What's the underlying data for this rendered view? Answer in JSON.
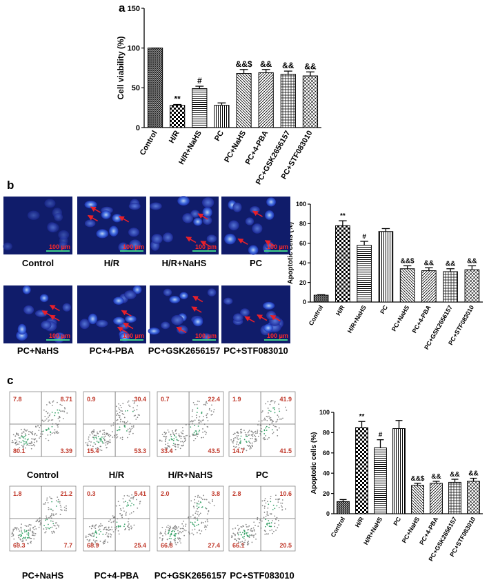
{
  "panels": [
    "a",
    "b",
    "c"
  ],
  "chart_data": [
    {
      "type": "bar",
      "y_label": "Cell viability (%)",
      "categories": [
        "Control",
        "H/R",
        "H/R+NaHS",
        "PC",
        "PC+NaHS",
        "PC+4-PBA",
        "PC+GSK2656157",
        "PC+STF083010"
      ],
      "values": [
        100,
        28,
        49,
        28,
        68,
        69,
        67,
        65
      ],
      "errors": [
        0,
        1,
        3,
        3,
        5,
        4,
        4,
        5
      ],
      "annotations": [
        null,
        "**",
        "#",
        null,
        "&&$",
        "&&",
        "&&",
        "&&"
      ],
      "patterns": [
        "crosshatch",
        "checker",
        "hlines",
        "vlines",
        "dots",
        "diag",
        "grid",
        "diagcross"
      ],
      "ylim": [
        0,
        150
      ],
      "yticks": [
        0,
        50,
        100,
        150
      ]
    },
    {
      "type": "bar",
      "y_label": "Apoptotic cells (%)",
      "categories": [
        "Control",
        "H/R",
        "H/R+NaHS",
        "PC",
        "PC+NaHS",
        "PC+4-PBA",
        "PC+GSK2656157",
        "PC+STF083010"
      ],
      "values": [
        7,
        78,
        58,
        72,
        34,
        32,
        31,
        33
      ],
      "errors": [
        0.5,
        5,
        4,
        3,
        3,
        3,
        3,
        4
      ],
      "annotations": [
        null,
        "**",
        "#",
        null,
        "&&$",
        "&&",
        "&&",
        "&&"
      ],
      "patterns": [
        "crosshatch",
        "checker",
        "hlines",
        "vlines",
        "dots",
        "diag",
        "grid",
        "diagcross"
      ],
      "ylim": [
        0,
        100
      ],
      "yticks": [
        0,
        20,
        40,
        60,
        80,
        100
      ]
    },
    {
      "type": "bar",
      "y_label": "Apoptotic cells (%)",
      "categories": [
        "Control",
        "H/R",
        "H/R+NaHS",
        "PC",
        "PC+NaHS",
        "PC+4-PBA",
        "PC+GSK2656157",
        "PC+STF083010"
      ],
      "values": [
        12,
        85,
        65,
        84,
        28,
        30,
        31,
        32
      ],
      "errors": [
        2,
        6,
        8,
        8,
        2,
        2,
        3,
        3
      ],
      "annotations": [
        null,
        "**",
        "#",
        null,
        "&&$",
        "&&",
        "&&",
        "&&"
      ],
      "patterns": [
        "crosshatch",
        "checker",
        "hlines",
        "vlines",
        "dots",
        "diag",
        "grid",
        "diagcross"
      ],
      "ylim": [
        0,
        100
      ],
      "yticks": [
        0,
        20,
        40,
        60,
        80,
        100
      ]
    }
  ],
  "micrographs": {
    "captions": [
      "Control",
      "H/R",
      "H/R+NaHS",
      "PC",
      "PC+NaHS",
      "PC+4-PBA",
      "PC+GSK2656157",
      "PC+STF083010"
    ],
    "scale_bar": "100 μm"
  },
  "flow": {
    "captions": [
      "Control",
      "H/R",
      "H/R+NaHS",
      "PC",
      "PC+NaHS",
      "PC+4-PBA",
      "PC+GSK2656157",
      "PC+STF083010"
    ],
    "quadrants": [
      [
        "7.8",
        "8.71",
        "80.1",
        "3.39"
      ],
      [
        "0.9",
        "30.4",
        "15.4",
        "53.3"
      ],
      [
        "0.7",
        "22.4",
        "33.4",
        "43.5"
      ],
      [
        "1.9",
        "41.9",
        "14.7",
        "41.5"
      ],
      [
        "1.8",
        "21.2",
        "69.3",
        "7.7"
      ],
      [
        "0.3",
        "5.41",
        "68.9",
        "25.4"
      ],
      [
        "2.0",
        "3.8",
        "66.8",
        "27.4"
      ],
      [
        "2.8",
        "10.6",
        "66.1",
        "20.5"
      ]
    ]
  }
}
